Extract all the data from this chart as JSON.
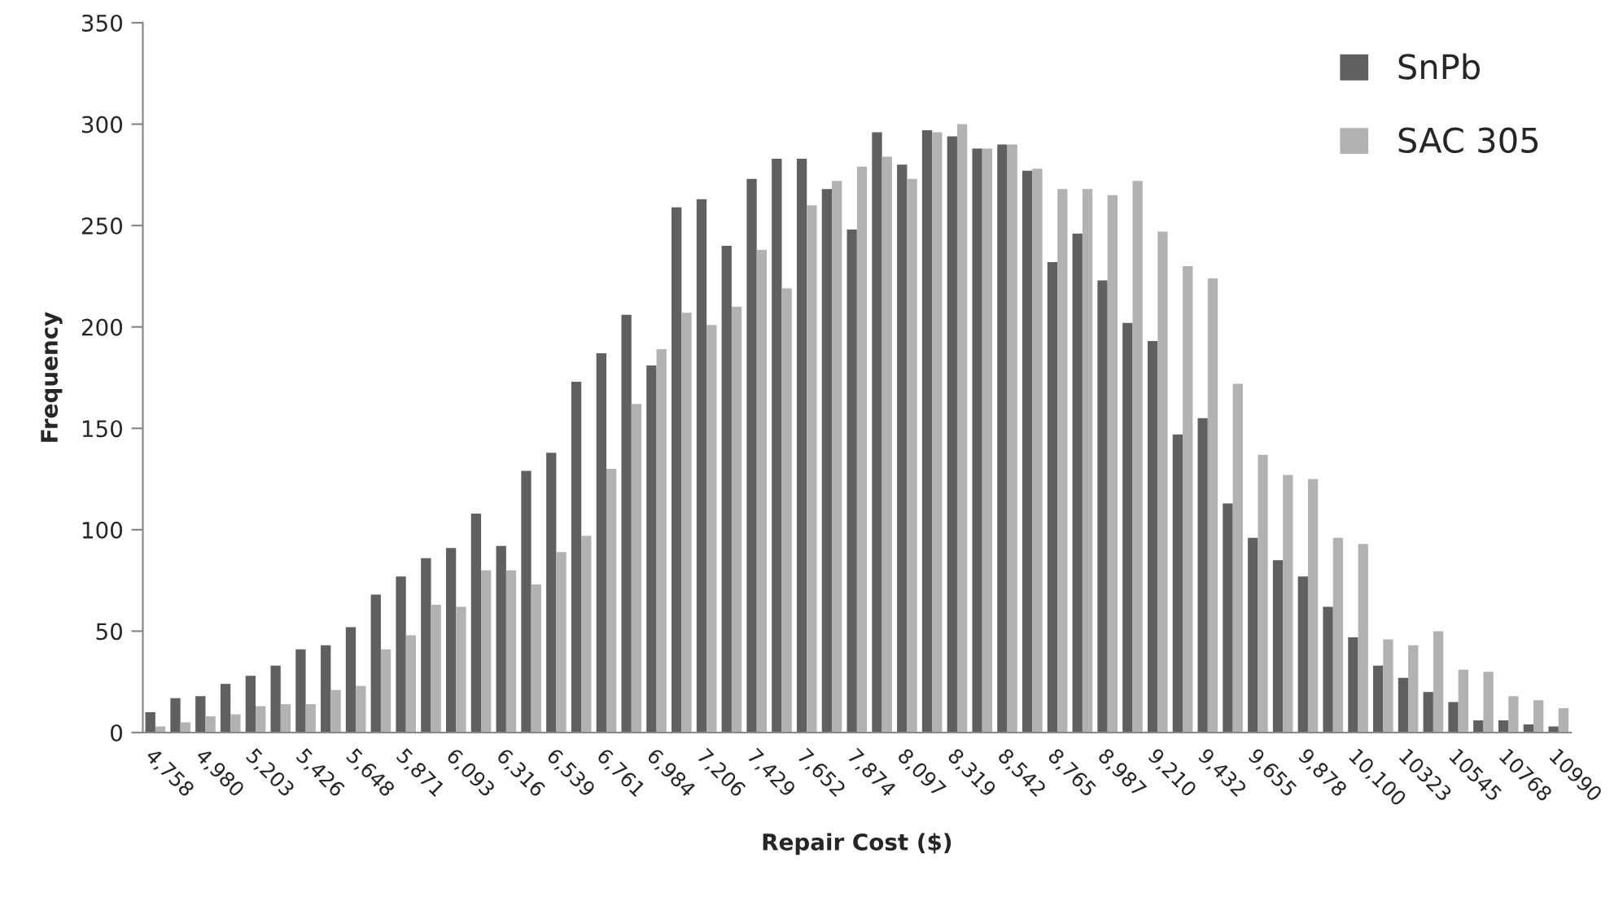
{
  "chart_data": {
    "type": "bar",
    "xlabel": "Repair Cost ($)",
    "ylabel": "Frequency",
    "categories": [
      "4,758",
      null,
      "4,980",
      null,
      "5,203",
      null,
      "5,426",
      null,
      "5,648",
      null,
      "5,871",
      null,
      "6,093",
      null,
      "6,316",
      null,
      "6,539",
      null,
      "6,761",
      null,
      "6,984",
      null,
      "7,206",
      null,
      "7,429",
      null,
      "7,652",
      null,
      "7,874",
      null,
      "8,097",
      null,
      "8,319",
      null,
      "8,542",
      null,
      "8,765",
      null,
      "8,987",
      null,
      "9,210",
      null,
      "9,432",
      null,
      "9,655",
      null,
      "9,878",
      null,
      "10,100",
      null,
      "10323",
      null,
      "10545",
      null,
      "10768",
      null,
      "10990"
    ],
    "series": [
      {
        "name": "SnPb",
        "color": "#606060",
        "values": [
          10,
          17,
          18,
          24,
          28,
          33,
          41,
          43,
          52,
          68,
          77,
          86,
          91,
          108,
          92,
          129,
          138,
          173,
          187,
          206,
          181,
          259,
          263,
          240,
          273,
          283,
          283,
          268,
          248,
          296,
          280,
          297,
          294,
          288,
          290,
          277,
          232,
          246,
          223,
          202,
          193,
          147,
          155,
          113,
          96,
          85,
          77,
          62,
          47,
          33,
          27,
          20,
          15,
          6,
          6,
          4,
          3
        ]
      },
      {
        "name": "SAC 305",
        "color": "#b2b2b2",
        "values": [
          3,
          5,
          8,
          9,
          13,
          14,
          14,
          21,
          23,
          41,
          48,
          63,
          62,
          80,
          80,
          73,
          89,
          97,
          130,
          162,
          189,
          207,
          201,
          210,
          238,
          219,
          260,
          272,
          279,
          284,
          273,
          296,
          300,
          288,
          290,
          278,
          268,
          268,
          265,
          272,
          247,
          230,
          224,
          172,
          137,
          127,
          125,
          96,
          93,
          46,
          43,
          50,
          31,
          30,
          18,
          16,
          12
        ]
      }
    ],
    "ylim": [
      0,
      350
    ],
    "yticks": [
      0,
      50,
      100,
      150,
      200,
      250,
      300,
      350
    ],
    "grid": false,
    "legend": "top right"
  }
}
